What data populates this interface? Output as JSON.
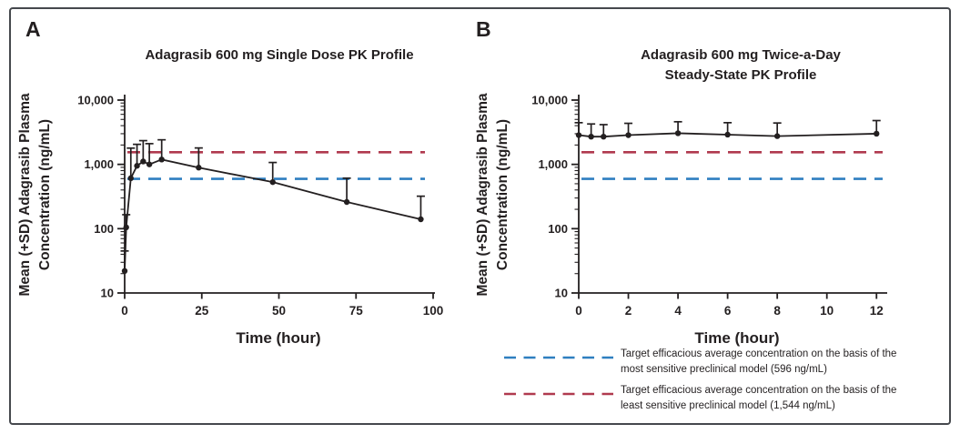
{
  "colors": {
    "ink": "#231f20",
    "line_blue": "#2e7fc0",
    "line_red": "#b03a4f"
  },
  "panels": [
    {
      "letter": "A",
      "title_lines": [
        "Adagrasib 600 mg Single Dose PK Profile"
      ],
      "y_label_lines": [
        "Mean (+SD) Adagrasib Plasma",
        "Concentration (ng/mL)"
      ],
      "x_label": "Time (hour)"
    },
    {
      "letter": "B",
      "title_lines": [
        "Adagrasib 600 mg Twice-a-Day",
        "Steady-State PK Profile"
      ],
      "y_label_lines": [
        "Mean (+SD) Adagrasib Plasma",
        "Concentration (ng/mL)"
      ],
      "x_label": "Time (hour)"
    }
  ],
  "legend": {
    "items": [
      {
        "color_key": "line_blue",
        "lines": [
          "Target efficacious average concentration on the basis of the",
          "most sensitive preclinical model (596 ng/mL)"
        ]
      },
      {
        "color_key": "line_red",
        "lines": [
          "Target efficacious average concentration on the basis of the",
          "least sensitive preclinical model (1,544 ng/mL)"
        ]
      }
    ]
  },
  "chart_data": [
    {
      "type": "line",
      "panel": "A",
      "title": "Adagrasib 600 mg Single Dose PK Profile",
      "xlabel": "Time (hour)",
      "ylabel": "Mean (+SD) Adagrasib Plasma Concentration (ng/mL)",
      "y_scale": "log10",
      "xlim": [
        0,
        100
      ],
      "ylim": [
        10,
        10000
      ],
      "x_ticks": [
        0,
        25,
        50,
        75,
        100
      ],
      "y_ticks": [
        10,
        100,
        1000,
        10000
      ],
      "y_tick_labels": [
        "10",
        "100",
        "1,000",
        "10,000"
      ],
      "grid": false,
      "series": [
        {
          "name": "Mean (+SD) adagrasib plasma concentration",
          "x": [
            0,
            0.5,
            2,
            4,
            6,
            8,
            12,
            24,
            48,
            72,
            96
          ],
          "mean": [
            22,
            105,
            610,
            950,
            1110,
            1000,
            1190,
            890,
            530,
            260,
            140
          ],
          "sd_upper": [
            45,
            165,
            1790,
            2050,
            2340,
            2100,
            2410,
            1800,
            1070,
            610,
            320
          ]
        }
      ],
      "reference_lines": [
        {
          "value": 596,
          "color_key": "line_blue",
          "label": "Target efficacious average concentration, most sensitive preclinical model (596 ng/mL)"
        },
        {
          "value": 1544,
          "color_key": "line_red",
          "label": "Target efficacious average concentration, least sensitive preclinical model (1,544 ng/mL)"
        }
      ]
    },
    {
      "type": "line",
      "panel": "B",
      "title": "Adagrasib 600 mg Twice-a-Day Steady-State PK Profile",
      "xlabel": "Time (hour)",
      "ylabel": "Mean (+SD) Adagrasib Plasma Concentration (ng/mL)",
      "y_scale": "log10",
      "xlim": [
        0,
        12
      ],
      "ylim": [
        10,
        10000
      ],
      "x_ticks": [
        0,
        2,
        4,
        6,
        8,
        10,
        12
      ],
      "y_ticks": [
        10,
        100,
        1000,
        10000
      ],
      "y_tick_labels": [
        "10",
        "100",
        "1,000",
        "10,000"
      ],
      "grid": false,
      "series": [
        {
          "name": "Mean (+SD) adagrasib plasma concentration",
          "x": [
            0,
            0.5,
            1,
            2,
            4,
            6,
            8,
            12
          ],
          "mean": [
            2850,
            2700,
            2700,
            2850,
            3050,
            2900,
            2750,
            3000
          ],
          "sd_upper": [
            4450,
            4250,
            4150,
            4350,
            4600,
            4450,
            4400,
            4800
          ]
        }
      ],
      "reference_lines": [
        {
          "value": 596,
          "color_key": "line_blue",
          "label": "Target efficacious average concentration, most sensitive preclinical model (596 ng/mL)"
        },
        {
          "value": 1544,
          "color_key": "line_red",
          "label": "Target efficacious average concentration, least sensitive preclinical model (1,544 ng/mL)"
        }
      ]
    }
  ]
}
